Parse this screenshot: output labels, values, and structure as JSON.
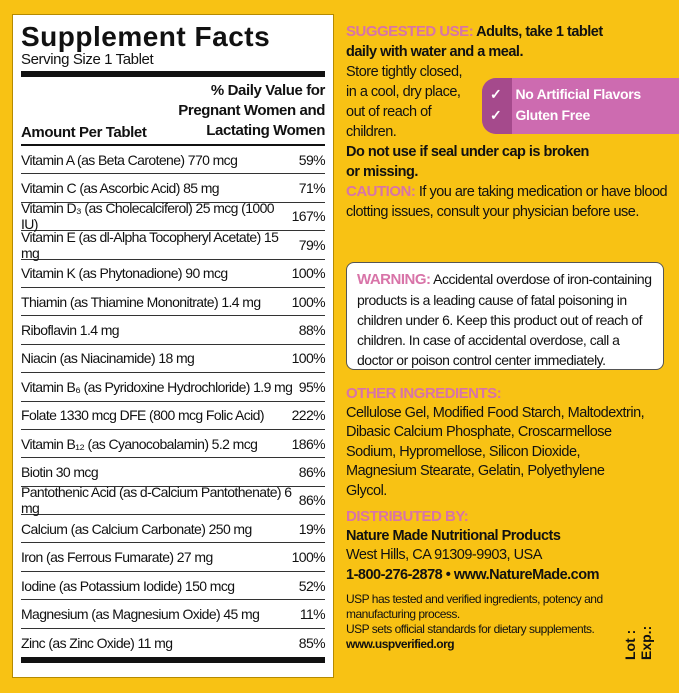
{
  "facts": {
    "title": "Supplement Facts",
    "serving": "Serving Size 1 Tablet",
    "col_amount": "Amount Per Tablet",
    "col_dv": [
      "% Daily Value for",
      "Pregnant Women and",
      "Lactating Women"
    ],
    "rows": [
      {
        "name": "Vitamin A (as Beta Carotene) 770 mcg",
        "dv": "59%"
      },
      {
        "name": "Vitamin C (as Ascorbic Acid) 85 mg",
        "dv": "71%"
      },
      {
        "name": "Vitamin D₃ (as Cholecalciferol) 25 mcg (1000 IU)",
        "dv": "167%"
      },
      {
        "name": "Vitamin E (as dl-Alpha Tocopheryl Acetate) 15 mg",
        "dv": "79%"
      },
      {
        "name": "Vitamin K (as Phytonadione) 90 mcg",
        "dv": "100%"
      },
      {
        "name": "Thiamin (as Thiamine Mononitrate) 1.4 mg",
        "dv": "100%"
      },
      {
        "name": "Riboflavin 1.4 mg",
        "dv": "88%"
      },
      {
        "name": "Niacin (as Niacinamide) 18 mg",
        "dv": "100%"
      },
      {
        "name": "Vitamin B₆ (as Pyridoxine Hydrochloride) 1.9 mg",
        "dv": "95%"
      },
      {
        "name": "Folate 1330 mcg DFE (800 mcg Folic Acid)",
        "dv": "222%"
      },
      {
        "name": "Vitamin B₁₂ (as Cyanocobalamin) 5.2 mcg",
        "dv": "186%"
      },
      {
        "name": "Biotin 30 mcg",
        "dv": "86%"
      },
      {
        "name": "Pantothenic Acid (as d-Calcium Pantothenate) 6 mg",
        "dv": "86%"
      },
      {
        "name": "Calcium (as Calcium Carbonate) 250 mg",
        "dv": "19%"
      },
      {
        "name": "Iron (as Ferrous Fumarate) 27 mg",
        "dv": "100%"
      },
      {
        "name": "Iodine (as Potassium Iodide) 150 mcg",
        "dv": "52%"
      },
      {
        "name": "Magnesium (as Magnesium Oxide) 45 mg",
        "dv": "11%"
      },
      {
        "name": "Zinc (as Zinc Oxide) 11 mg",
        "dv": "85%"
      }
    ]
  },
  "suggested": {
    "label": "SUGGESTED USE:",
    "l1": " Adults, take 1 tablet",
    "l2": "daily with water and a meal.",
    "store": [
      "Store tightly closed,",
      "in a cool, dry place,",
      "out of reach of",
      "children."
    ],
    "seal": [
      "Do not use if seal under cap is broken",
      "or missing."
    ]
  },
  "caution": {
    "label": "CAUTION:",
    "text": " If you are taking medication or have blood clotting issues, consult your physician before use."
  },
  "badge": {
    "items": [
      "No Artificial Flavors",
      "Gluten Free"
    ],
    "icon": "check-icon"
  },
  "warning": {
    "label": "WARNING:",
    "text": " Accidental overdose of iron-containing products is a leading cause of fatal poisoning in children under 6. Keep this product out of reach of children. In case of accidental overdose, call a doctor or poison control center immediately."
  },
  "ingredients": {
    "label": "OTHER INGREDIENTS:",
    "text": "Cellulose Gel, Modified Food Starch, Maltodextrin,  Dibasic Calcium Phosphate, Croscarmellose Sodium, Hypromellose, Silicon Dioxide, Magnesium Stearate, Gelatin, Polyethylene Glycol."
  },
  "distributed": {
    "label": "DISTRIBUTED BY:",
    "company": "Nature Made Nutritional Products",
    "address": "West Hills, CA 91309-9903, USA",
    "contact": "1-800-276-2878 • www.NatureMade.com"
  },
  "usp": {
    "l1": "USP has tested and verified ingredients, potency and manufacturing process.",
    "l2": "USP sets official standards for dietary supplements.",
    "url": "www.uspverified.org"
  },
  "lot": {
    "lot": "Lot :",
    "exp": "Exp.:"
  },
  "colors": {
    "background": "#f8c214",
    "accent_pink": "#d874a8",
    "badge": "#cd6bb0"
  }
}
